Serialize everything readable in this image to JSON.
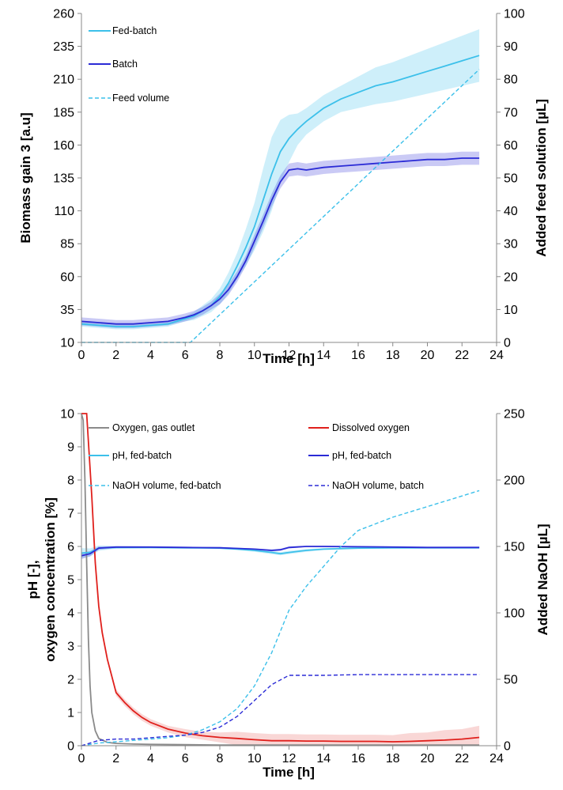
{
  "chart_data": [
    {
      "type": "line",
      "xlabel": "Time   [h]",
      "ylabel": "Biomass gain 3   [a.u]",
      "y2label": "Added feed solution   [µL]",
      "xlim": [
        0,
        24
      ],
      "ylim": [
        10,
        260
      ],
      "y2lim": [
        0,
        100
      ],
      "xticks": [
        "0",
        "2",
        "4",
        "6",
        "8",
        "10",
        "12",
        "14",
        "16",
        "18",
        "20",
        "22",
        "24"
      ],
      "yticks": [
        "10",
        "35",
        "60",
        "85",
        "110",
        "135",
        "160",
        "185",
        "210",
        "235",
        "260"
      ],
      "y2ticks": [
        "0",
        "10",
        "20",
        "30",
        "40",
        "50",
        "60",
        "70",
        "80",
        "90",
        "100"
      ],
      "grid": false,
      "legend_position": "top-left",
      "series": [
        {
          "name": "Fed-batch",
          "axis": "left",
          "color": "#3cc0ea",
          "style": "solid",
          "x": [
            0,
            1,
            2,
            3,
            4,
            5,
            6,
            6.5,
            7,
            7.5,
            8,
            8.5,
            9,
            9.5,
            10,
            10.5,
            11,
            11.5,
            12,
            12.5,
            13,
            14,
            15,
            16,
            17,
            18,
            19,
            20,
            21,
            22,
            23
          ],
          "y": [
            24,
            23,
            22,
            22,
            23,
            24,
            28,
            30,
            34,
            38,
            45,
            55,
            68,
            82,
            98,
            118,
            138,
            155,
            165,
            172,
            178,
            188,
            195,
            200,
            205,
            208,
            212,
            216,
            220,
            224,
            228
          ],
          "band": [
            2,
            2,
            2,
            2,
            2,
            2,
            2,
            3,
            4,
            5,
            6,
            8,
            10,
            14,
            18,
            24,
            28,
            24,
            18,
            12,
            10,
            10,
            10,
            12,
            14,
            15,
            16,
            17,
            18,
            19,
            20
          ]
        },
        {
          "name": "Batch",
          "axis": "left",
          "color": "#2b2bd6",
          "style": "solid",
          "x": [
            0,
            1,
            2,
            3,
            4,
            5,
            6,
            6.5,
            7,
            7.5,
            8,
            8.5,
            9,
            9.5,
            10,
            10.5,
            11,
            11.5,
            12,
            12.5,
            13,
            14,
            15,
            16,
            17,
            18,
            19,
            20,
            21,
            22,
            23
          ],
          "y": [
            26,
            25,
            24,
            24,
            25,
            26,
            29,
            31,
            34,
            38,
            43,
            50,
            60,
            72,
            87,
            102,
            118,
            132,
            141,
            142,
            141,
            143,
            144,
            145,
            146,
            147,
            148,
            149,
            149,
            150,
            150
          ],
          "band": [
            3,
            3,
            3,
            3,
            3,
            3,
            3,
            3,
            3,
            3,
            4,
            4,
            4,
            4,
            5,
            5,
            5,
            5,
            5,
            5,
            5,
            5,
            5,
            5,
            5,
            5,
            5,
            5,
            5,
            5,
            5
          ]
        },
        {
          "name": "Feed volume",
          "axis": "right",
          "color": "#3cc0ea",
          "style": "dashed",
          "x": [
            0,
            6.3,
            23
          ],
          "y": [
            0,
            0,
            83
          ]
        }
      ]
    },
    {
      "type": "line",
      "xlabel": "Time   [h]",
      "ylabel": "pH   [-],\noxygen concentration   [%]",
      "ylabel_lines": [
        "pH   [-],",
        "oxygen concentration   [%]"
      ],
      "y2label": "Added NaOH   [µL]",
      "xlim": [
        0,
        24
      ],
      "ylim": [
        0,
        10
      ],
      "y2lim": [
        0,
        250
      ],
      "xticks": [
        "0",
        "2",
        "4",
        "6",
        "8",
        "10",
        "12",
        "14",
        "16",
        "18",
        "20",
        "22",
        "24"
      ],
      "yticks": [
        "0",
        "1",
        "2",
        "3",
        "4",
        "5",
        "6",
        "7",
        "8",
        "9",
        "10"
      ],
      "y2ticks": [
        "0",
        "50",
        "100",
        "150",
        "200",
        "250"
      ],
      "grid": false,
      "legend_position": "top",
      "series": [
        {
          "name": "Oxygen, gas outlet",
          "axis": "left",
          "color": "#8a8a8a",
          "style": "solid",
          "x": [
            0,
            0.1,
            0.2,
            0.3,
            0.4,
            0.5,
            0.6,
            0.8,
            1,
            1.5,
            2,
            3,
            4,
            6,
            8,
            10,
            12,
            16,
            20,
            23
          ],
          "y": [
            10,
            9.8,
            8,
            5.5,
            3.2,
            1.8,
            1.0,
            0.45,
            0.22,
            0.1,
            0.07,
            0.05,
            0.04,
            0.03,
            0.02,
            0.02,
            0.02,
            0.02,
            0.02,
            0.02
          ]
        },
        {
          "name": "Dissolved oxygen",
          "axis": "left",
          "color": "#e0201c",
          "style": "solid",
          "x": [
            0,
            0.3,
            0.6,
            0.8,
            1,
            1.2,
            1.5,
            1.8,
            2,
            2.5,
            3,
            3.5,
            4,
            5,
            6,
            7,
            8,
            9,
            10,
            11,
            12,
            13,
            14,
            15,
            16,
            17,
            18,
            19,
            20,
            21,
            22,
            23
          ],
          "y": [
            10,
            10,
            7.5,
            5.5,
            4.2,
            3.4,
            2.6,
            2.0,
            1.6,
            1.3,
            1.05,
            0.85,
            0.7,
            0.5,
            0.38,
            0.3,
            0.25,
            0.22,
            0.18,
            0.15,
            0.15,
            0.14,
            0.14,
            0.13,
            0.13,
            0.13,
            0.12,
            0.13,
            0.15,
            0.17,
            0.2,
            0.25
          ],
          "band": [
            0,
            0,
            0,
            0,
            0,
            0,
            0,
            0,
            0.1,
            0.1,
            0.1,
            0.1,
            0.1,
            0.1,
            0.12,
            0.12,
            0.15,
            0.2,
            0.2,
            0.2,
            0.2,
            0.2,
            0.2,
            0.2,
            0.2,
            0.2,
            0.2,
            0.25,
            0.25,
            0.3,
            0.3,
            0.35
          ]
        },
        {
          "name": "pH, fed-batch",
          "axis": "left",
          "color": "#3cc0ea",
          "style": "solid",
          "x": [
            0,
            0.5,
            1,
            2,
            4,
            6,
            8,
            9,
            10,
            11,
            11.5,
            12,
            13,
            14,
            16,
            18,
            20,
            23
          ],
          "y": [
            5.8,
            5.82,
            5.95,
            5.97,
            5.97,
            5.96,
            5.95,
            5.92,
            5.88,
            5.82,
            5.78,
            5.82,
            5.88,
            5.92,
            5.95,
            5.96,
            5.96,
            5.96
          ],
          "band": [
            0.15,
            0.12,
            0.08,
            0.04,
            0.03,
            0.03,
            0.03,
            0.03,
            0.04,
            0.05,
            0.05,
            0.05,
            0.04,
            0.03,
            0.03,
            0.03,
            0.03,
            0.03
          ]
        },
        {
          "name": "pH, fed-batch",
          "axis": "left",
          "color": "#2b2bd6",
          "style": "solid",
          "x": [
            0,
            0.5,
            1,
            2,
            4,
            6,
            8,
            9,
            10,
            11,
            11.5,
            12,
            13,
            14,
            16,
            18,
            20,
            23
          ],
          "y": [
            5.72,
            5.78,
            5.95,
            5.98,
            5.98,
            5.97,
            5.96,
            5.94,
            5.92,
            5.88,
            5.9,
            5.97,
            6.0,
            6.0,
            5.99,
            5.98,
            5.97,
            5.97
          ],
          "band": [
            0.1,
            0.08,
            0.05,
            0.03,
            0.02,
            0.02,
            0.02,
            0.02,
            0.02,
            0.03,
            0.03,
            0.03,
            0.02,
            0.02,
            0.02,
            0.02,
            0.02,
            0.02
          ]
        },
        {
          "name": "NaOH volume, fed-batch",
          "axis": "right",
          "color": "#3cc0ea",
          "style": "dashed",
          "x": [
            0,
            1,
            2,
            3,
            4,
            5,
            6,
            7,
            8,
            9,
            10,
            11,
            12,
            13,
            14,
            15,
            16,
            17,
            18,
            19,
            20,
            21,
            22,
            23
          ],
          "y": [
            0,
            2,
            3,
            4,
            5,
            6,
            8,
            12,
            18,
            28,
            45,
            70,
            102,
            120,
            135,
            150,
            162,
            167,
            172,
            176,
            180,
            184,
            188,
            192
          ]
        },
        {
          "name": "NaOH volume, batch",
          "axis": "right",
          "color": "#2b2bd6",
          "style": "dashed",
          "x": [
            0,
            1,
            2,
            3,
            4,
            5,
            6,
            7,
            8,
            9,
            10,
            11,
            12,
            13,
            14,
            16,
            18,
            20,
            23
          ],
          "y": [
            0,
            4,
            5,
            5,
            6,
            7,
            8,
            10,
            14,
            22,
            34,
            46,
            53,
            53,
            53,
            53.5,
            53.5,
            53.5,
            53.5
          ]
        }
      ]
    }
  ]
}
